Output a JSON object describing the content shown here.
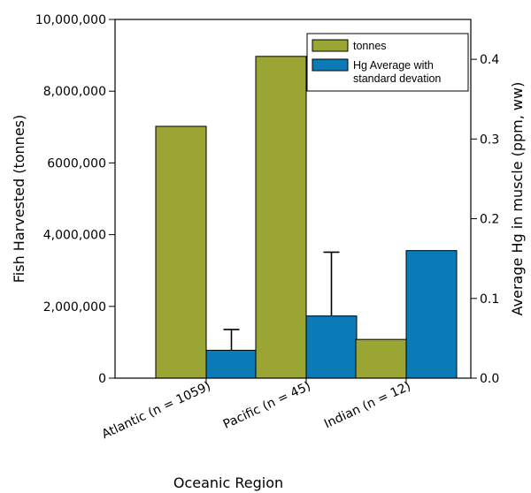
{
  "chart_data": {
    "type": "bar",
    "categories": [
      "Atlantic (n = 1059)",
      "Pacific (n = 45)",
      "Indian (n = 12)"
    ],
    "xlabel": "Oceanic Region",
    "ylabel": "Fish Harvested (tonnes)",
    "y2label": "Average Hg in muscle (ppm, ww)",
    "ylim": [
      0,
      10000000
    ],
    "y2lim": [
      0,
      0.45
    ],
    "yticks": [
      0,
      2000000,
      4000000,
      6000000,
      8000000,
      10000000
    ],
    "yticklabels": [
      "0",
      "2,000,000",
      "4,000,000",
      "6000,000",
      "8,000,000",
      "10,000,000"
    ],
    "y2ticks": [
      0,
      0.1,
      0.2,
      0.3,
      0.4
    ],
    "y2ticklabels": [
      "0.0",
      "0.1",
      "0.2",
      "0.3",
      "0.4"
    ],
    "series": [
      {
        "name": "tonnes",
        "axis": "left",
        "color": "#9aa533",
        "values": [
          7020000,
          8970000,
          1080000
        ]
      },
      {
        "name": "Hg Average with standard devation",
        "axis": "right",
        "color": "#0a7bb7",
        "values": [
          0.035,
          0.078,
          0.16
        ],
        "error": [
          0.026,
          0.08,
          null
        ]
      }
    ],
    "legend": {
      "position": "top-right",
      "entries": [
        {
          "label_lines": [
            "tonnes"
          ],
          "color": "#9aa533"
        },
        {
          "label_lines": [
            "Hg Average with",
            "standard devation"
          ],
          "color": "#0a7bb7"
        }
      ]
    },
    "grid": false
  }
}
